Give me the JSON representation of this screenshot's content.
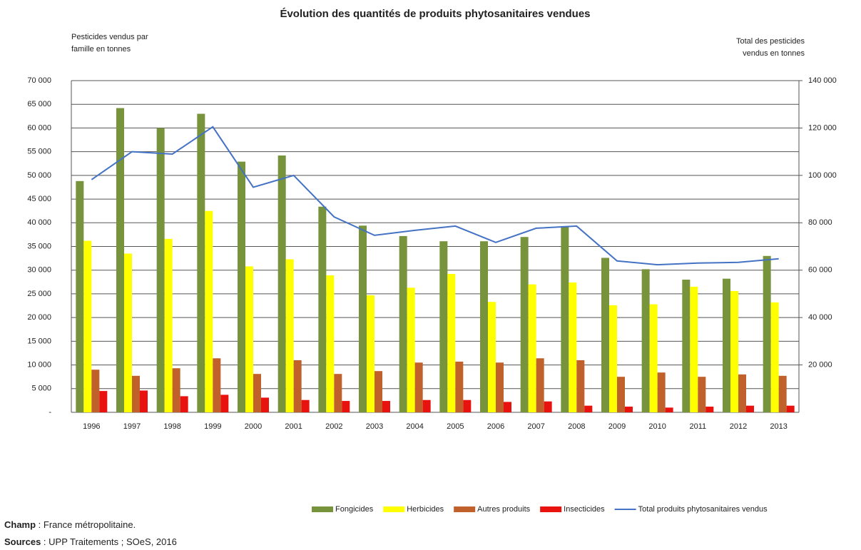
{
  "chart_data": {
    "type": "bar_line",
    "title": "Évolution des quantités de produits phytosanitaires vendues",
    "ylabel": [
      "Pesticides vendus par",
      "famille en tonnes"
    ],
    "y2label": [
      "Total des pesticides",
      "vendus en tonnes"
    ],
    "categories": [
      "1996",
      "1997",
      "1998",
      "1999",
      "2000",
      "2001",
      "2002",
      "2003",
      "2004",
      "2005",
      "2006",
      "2007",
      "2008",
      "2009",
      "2010",
      "2011",
      "2012",
      "2013"
    ],
    "series": [
      {
        "name": "Fongicides",
        "color": "#77933c",
        "values": [
          48800,
          64200,
          60000,
          63000,
          52900,
          54200,
          43400,
          39400,
          37200,
          36100,
          36100,
          37000,
          39200,
          32600,
          30200,
          28000,
          28200,
          33000
        ]
      },
      {
        "name": "Herbicides",
        "color": "#ffff00",
        "values": [
          36200,
          33500,
          36600,
          42500,
          30800,
          32300,
          28900,
          24700,
          26300,
          29200,
          23300,
          27000,
          27400,
          22600,
          22800,
          26500,
          25600,
          23200
        ]
      },
      {
        "name": "Autres produits",
        "color": "#c0602a",
        "values": [
          9000,
          7700,
          9300,
          11400,
          8100,
          11000,
          8100,
          8700,
          10500,
          10700,
          10500,
          11400,
          11000,
          7500,
          8400,
          7500,
          8000,
          7700
        ]
      },
      {
        "name": "Insecticides",
        "color": "#e8120f",
        "values": [
          4500,
          4600,
          3400,
          3700,
          3100,
          2600,
          2400,
          2400,
          2600,
          2600,
          2200,
          2300,
          1400,
          1200,
          1000,
          1200,
          1400,
          1400
        ]
      },
      {
        "name": "Total produits phytosanitaires vendus",
        "color": "#4472c4",
        "type": "line",
        "axis": "y2",
        "values": [
          98200,
          110000,
          109000,
          120500,
          95000,
          100000,
          82500,
          74700,
          76800,
          78600,
          71700,
          77700,
          78600,
          63900,
          62300,
          63000,
          63300,
          64800
        ]
      }
    ],
    "ylim": [
      0,
      70000
    ],
    "yticks": [
      {
        "value": 0,
        "label": "-"
      },
      {
        "value": 5000,
        "label": "5 000"
      },
      {
        "value": 10000,
        "label": "10 000"
      },
      {
        "value": 15000,
        "label": "15 000"
      },
      {
        "value": 20000,
        "label": "20 000"
      },
      {
        "value": 25000,
        "label": "25 000"
      },
      {
        "value": 30000,
        "label": "30 000"
      },
      {
        "value": 35000,
        "label": "35 000"
      },
      {
        "value": 40000,
        "label": "40 000"
      },
      {
        "value": 45000,
        "label": "45 000"
      },
      {
        "value": 50000,
        "label": "50 000"
      },
      {
        "value": 55000,
        "label": "55 000"
      },
      {
        "value": 60000,
        "label": "60 000"
      },
      {
        "value": 65000,
        "label": "65 000"
      },
      {
        "value": 70000,
        "label": "70 000"
      }
    ],
    "y2lim": [
      0,
      140000
    ],
    "y2ticks": [
      {
        "value": 20000,
        "label": "20 000"
      },
      {
        "value": 40000,
        "label": "40 000"
      },
      {
        "value": 60000,
        "label": "60 000"
      },
      {
        "value": 80000,
        "label": "80 000"
      },
      {
        "value": 100000,
        "label": "100 000"
      },
      {
        "value": 120000,
        "label": "120 000"
      },
      {
        "value": 140000,
        "label": "140 000"
      }
    ],
    "grid": true,
    "legend": "bottom",
    "notes": [
      {
        "label": "Champ",
        "text": " : France métropolitaine."
      },
      {
        "label": "Sources",
        "text": " : UPP Traitements ; SOeS, 2016"
      }
    ]
  }
}
